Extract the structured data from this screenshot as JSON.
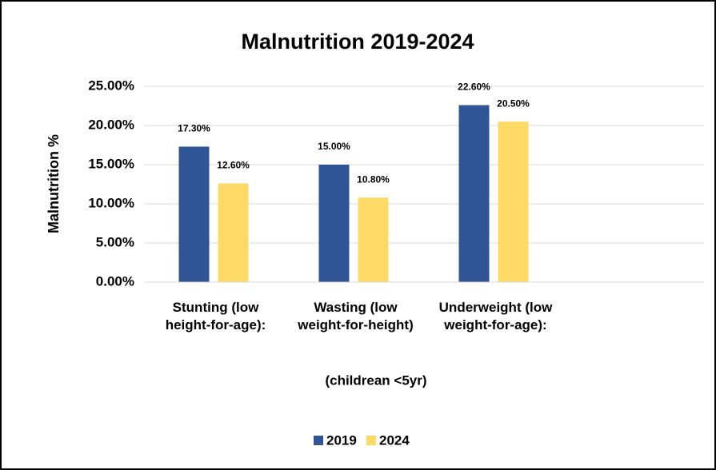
{
  "chart_data": {
    "type": "bar",
    "title": "Malnutrition 2019-2024",
    "y_label": "Malnutrition %",
    "x_label": "(childrean <5yr)",
    "categories": [
      "Stunting (low height-for-age):",
      "Wasting (low weight-for-height)",
      "Underweight (low weight-for-age):",
      null
    ],
    "series": [
      {
        "name": "2019",
        "color": "#2f5597",
        "values": [
          17.3,
          15.0,
          22.6,
          null
        ],
        "value_labels": [
          "17.30%",
          "15.00%",
          "22.60%",
          null
        ]
      },
      {
        "name": "2024",
        "color": "#ffd966",
        "values": [
          12.6,
          10.8,
          20.5,
          null
        ],
        "value_labels": [
          "12.60%",
          "10.80%",
          "20.50%",
          null
        ]
      }
    ],
    "ylim": [
      0,
      25
    ],
    "yticks": [
      {
        "value": 0,
        "label": "0.00%"
      },
      {
        "value": 5,
        "label": "5.00%"
      },
      {
        "value": 10,
        "label": "10.00%"
      },
      {
        "value": 15,
        "label": "15.00%"
      },
      {
        "value": 20,
        "label": "20.00%"
      },
      {
        "value": 25,
        "label": "25.00%"
      }
    ],
    "grid": true,
    "legend": "bottom"
  }
}
